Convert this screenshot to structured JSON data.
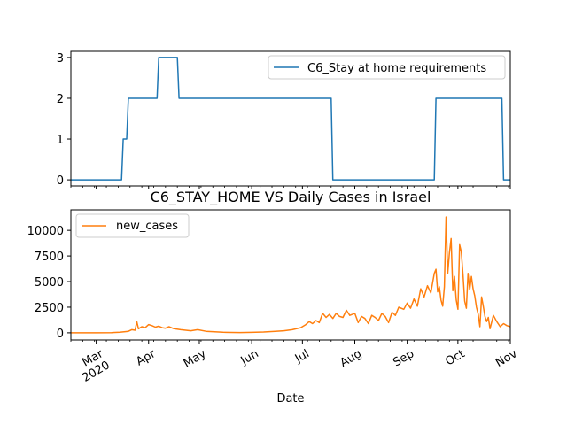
{
  "chart_data": [
    {
      "type": "line",
      "title": "",
      "xlabel": "",
      "ylabel": "",
      "ylim": [
        -0.15,
        3.15
      ],
      "yticks": [
        0,
        1,
        2,
        3
      ],
      "legend": "top-right",
      "series": [
        {
          "name": "C6_Stay at home requirements",
          "color": "#1f77b4",
          "x": [
            "2020-02-15",
            "2020-03-16",
            "2020-03-17",
            "2020-03-19",
            "2020-03-20",
            "2020-04-06",
            "2020-04-07",
            "2020-04-18",
            "2020-04-19",
            "2020-07-18",
            "2020-07-19",
            "2020-09-17",
            "2020-09-18",
            "2020-10-27",
            "2020-10-28",
            "2020-11-01"
          ],
          "values": [
            0,
            0,
            1,
            1,
            2,
            2,
            3,
            3,
            2,
            2,
            0,
            0,
            2,
            2,
            0,
            0
          ]
        }
      ]
    },
    {
      "type": "line",
      "title": "C6_STAY_HOME VS Daily Cases in Israel",
      "xlabel": "Date",
      "ylabel": "",
      "ylim": [
        -700,
        12000
      ],
      "yticks": [
        0,
        2500,
        5000,
        7500,
        10000
      ],
      "xtick_labels": [
        "Mar\n2020",
        "Apr",
        "May",
        "Jun",
        "Jul",
        "Aug",
        "Sep",
        "Oct",
        "Nov"
      ],
      "legend": "top-left",
      "series": [
        {
          "name": "new_cases",
          "color": "#ff7f0e",
          "x": [
            "2020-02-15",
            "2020-03-01",
            "2020-03-10",
            "2020-03-15",
            "2020-03-20",
            "2020-03-22",
            "2020-03-24",
            "2020-03-25",
            "2020-03-26",
            "2020-03-28",
            "2020-03-30",
            "2020-04-01",
            "2020-04-03",
            "2020-04-05",
            "2020-04-07",
            "2020-04-09",
            "2020-04-11",
            "2020-04-13",
            "2020-04-16",
            "2020-04-20",
            "2020-04-23",
            "2020-04-26",
            "2020-04-30",
            "2020-05-05",
            "2020-05-15",
            "2020-05-25",
            "2020-06-01",
            "2020-06-08",
            "2020-06-15",
            "2020-06-20",
            "2020-06-25",
            "2020-06-30",
            "2020-07-03",
            "2020-07-05",
            "2020-07-07",
            "2020-07-09",
            "2020-07-11",
            "2020-07-13",
            "2020-07-15",
            "2020-07-17",
            "2020-07-19",
            "2020-07-21",
            "2020-07-23",
            "2020-07-25",
            "2020-07-27",
            "2020-07-29",
            "2020-08-01",
            "2020-08-03",
            "2020-08-05",
            "2020-08-07",
            "2020-08-09",
            "2020-08-11",
            "2020-08-13",
            "2020-08-15",
            "2020-08-17",
            "2020-08-19",
            "2020-08-21",
            "2020-08-23",
            "2020-08-25",
            "2020-08-27",
            "2020-08-30",
            "2020-09-01",
            "2020-09-03",
            "2020-09-05",
            "2020-09-07",
            "2020-09-09",
            "2020-09-11",
            "2020-09-13",
            "2020-09-15",
            "2020-09-17",
            "2020-09-18",
            "2020-09-19",
            "2020-09-20",
            "2020-09-21",
            "2020-09-22",
            "2020-09-23",
            "2020-09-24",
            "2020-09-25",
            "2020-09-26",
            "2020-09-27",
            "2020-09-28",
            "2020-09-29",
            "2020-09-30",
            "2020-10-01",
            "2020-10-02",
            "2020-10-03",
            "2020-10-04",
            "2020-10-05",
            "2020-10-06",
            "2020-10-07",
            "2020-10-08",
            "2020-10-09",
            "2020-10-10",
            "2020-10-11",
            "2020-10-12",
            "2020-10-13",
            "2020-10-14",
            "2020-10-15",
            "2020-10-16",
            "2020-10-17",
            "2020-10-18",
            "2020-10-19",
            "2020-10-20",
            "2020-10-22",
            "2020-10-24",
            "2020-10-26",
            "2020-10-28",
            "2020-10-30",
            "2020-11-01"
          ],
          "values": [
            0,
            0,
            20,
            60,
            150,
            300,
            250,
            1100,
            400,
            600,
            500,
            800,
            700,
            550,
            650,
            500,
            450,
            600,
            400,
            300,
            250,
            200,
            300,
            150,
            50,
            30,
            40,
            80,
            150,
            200,
            300,
            500,
            800,
            1100,
            900,
            1200,
            1000,
            1900,
            1500,
            1800,
            1400,
            1900,
            1600,
            1500,
            2200,
            1700,
            1900,
            1000,
            1600,
            1400,
            900,
            1700,
            1500,
            1200,
            1900,
            1600,
            1000,
            2000,
            1700,
            2500,
            2300,
            2900,
            2400,
            3300,
            2600,
            4300,
            3500,
            4600,
            3900,
            5800,
            6200,
            4000,
            4500,
            3200,
            2600,
            4500,
            11300,
            5800,
            7800,
            9200,
            4100,
            5500,
            3200,
            2300,
            8600,
            7900,
            5700,
            3100,
            2400,
            5800,
            4200,
            5500,
            4300,
            3600,
            2500,
            1800,
            600,
            3500,
            2600,
            1600,
            1100,
            1500,
            400,
            1700,
            1100,
            600,
            900,
            700,
            600
          ]
        }
      ]
    }
  ]
}
